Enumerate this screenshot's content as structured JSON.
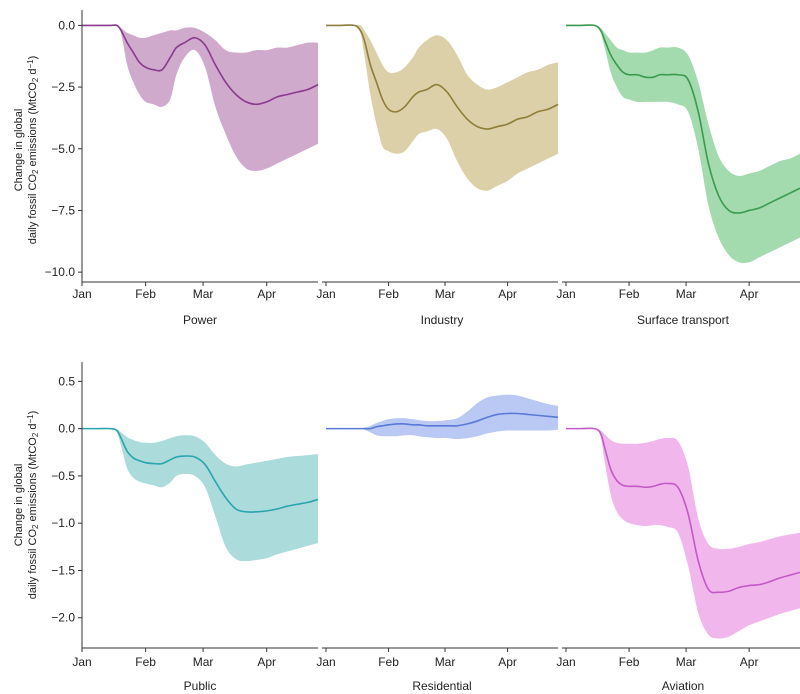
{
  "shared": {
    "ylabel_line1": "Change in global",
    "ylabel_line2_pre": "daily fossil CO",
    "ylabel_line2_sub": "2",
    "ylabel_line2_mid": " emissions (MtCO",
    "ylabel_line2_sub2": "2",
    "ylabel_line2_post": " d",
    "ylabel_line2_sup": "−1",
    "ylabel_line2_end": ")",
    "x_ticks": [
      "Jan",
      "Feb",
      "Mar",
      "Apr"
    ]
  },
  "chart_data": [
    {
      "type": "area",
      "title": "Power",
      "color": "#8a3a8e",
      "fill": "#c79bc4",
      "ylim": [
        -10.4,
        0.3
      ],
      "yticks": [
        0.0,
        -2.5,
        -5.0,
        -7.5,
        -10.0
      ],
      "ytick_labels": [
        "0.0",
        "−2.5",
        "−5.0",
        "−7.5",
        "−10.0"
      ],
      "x": [
        0,
        7,
        14,
        17,
        19,
        22,
        25,
        28,
        31,
        35,
        39,
        43,
        46,
        50,
        55,
        60,
        65,
        70,
        75,
        80,
        85,
        90,
        95,
        100,
        105,
        110,
        115
      ],
      "values": [
        0.0,
        0.0,
        0.0,
        0.0,
        -0.2,
        -0.7,
        -1.1,
        -1.5,
        -1.7,
        -1.8,
        -1.8,
        -1.3,
        -0.9,
        -0.7,
        -0.5,
        -0.8,
        -1.6,
        -2.3,
        -2.8,
        -3.1,
        -3.2,
        -3.1,
        -2.9,
        -2.8,
        -2.7,
        -2.6,
        -2.4
      ],
      "upper": [
        0.0,
        0.0,
        0.0,
        0.0,
        -0.1,
        -0.3,
        -0.4,
        -0.5,
        -0.5,
        -0.4,
        -0.3,
        -0.2,
        -0.2,
        -0.1,
        -0.1,
        -0.3,
        -0.6,
        -1.0,
        -1.1,
        -1.1,
        -1.0,
        -1.0,
        -0.9,
        -0.9,
        -0.8,
        -0.7,
        -0.7
      ],
      "lower": [
        0.0,
        0.0,
        0.0,
        0.0,
        -0.3,
        -1.6,
        -2.3,
        -2.8,
        -3.1,
        -3.2,
        -3.3,
        -3.0,
        -2.0,
        -1.3,
        -1.0,
        -1.7,
        -3.3,
        -4.4,
        -5.3,
        -5.8,
        -5.9,
        -5.8,
        -5.6,
        -5.4,
        -5.2,
        -5.0,
        -4.8
      ]
    },
    {
      "type": "area",
      "title": "Industry",
      "color": "#8f7d3a",
      "fill": "#d5c898",
      "ylim": [
        -10.4,
        0.3
      ],
      "x": [
        0,
        7,
        14,
        17,
        19,
        22,
        25,
        28,
        31,
        35,
        39,
        43,
        46,
        50,
        55,
        60,
        65,
        70,
        75,
        80,
        85,
        90,
        95,
        100,
        105,
        110,
        115
      ],
      "values": [
        0.0,
        0.0,
        0.0,
        -0.2,
        -0.6,
        -1.6,
        -2.3,
        -3.0,
        -3.4,
        -3.5,
        -3.3,
        -2.9,
        -2.7,
        -2.6,
        -2.4,
        -2.7,
        -3.3,
        -3.8,
        -4.1,
        -4.2,
        -4.1,
        -4.0,
        -3.8,
        -3.7,
        -3.5,
        -3.4,
        -3.2
      ],
      "upper": [
        0.0,
        0.0,
        0.0,
        0.0,
        -0.2,
        -0.6,
        -1.1,
        -1.6,
        -1.9,
        -1.9,
        -1.7,
        -1.3,
        -0.9,
        -0.6,
        -0.4,
        -0.6,
        -1.2,
        -2.0,
        -2.4,
        -2.6,
        -2.5,
        -2.3,
        -2.1,
        -1.9,
        -1.8,
        -1.6,
        -1.5
      ],
      "lower": [
        0.0,
        0.0,
        0.0,
        -0.3,
        -1.2,
        -2.8,
        -4.0,
        -4.9,
        -5.1,
        -5.2,
        -5.1,
        -4.7,
        -4.4,
        -4.3,
        -4.2,
        -4.6,
        -5.5,
        -6.2,
        -6.6,
        -6.7,
        -6.5,
        -6.3,
        -6.0,
        -5.8,
        -5.6,
        -5.4,
        -5.2
      ]
    },
    {
      "type": "area",
      "title": "Surface transport",
      "color": "#3a9a4e",
      "fill": "#93d3a0",
      "ylim": [
        -10.4,
        0.3
      ],
      "x": [
        0,
        7,
        14,
        17,
        19,
        22,
        25,
        28,
        31,
        35,
        39,
        43,
        46,
        50,
        55,
        60,
        65,
        70,
        75,
        80,
        85,
        90,
        95,
        100,
        105,
        110,
        115
      ],
      "values": [
        0.0,
        0.0,
        0.0,
        -0.2,
        -0.6,
        -1.2,
        -1.6,
        -1.9,
        -2.0,
        -2.0,
        -2.1,
        -2.1,
        -2.0,
        -2.0,
        -2.0,
        -2.2,
        -3.5,
        -5.6,
        -6.9,
        -7.5,
        -7.6,
        -7.5,
        -7.4,
        -7.2,
        -7.0,
        -6.8,
        -6.6
      ],
      "upper": [
        0.0,
        0.0,
        0.0,
        -0.1,
        -0.3,
        -0.6,
        -0.9,
        -1.0,
        -1.1,
        -1.1,
        -1.1,
        -1.0,
        -0.9,
        -0.9,
        -0.9,
        -1.2,
        -2.3,
        -4.0,
        -5.3,
        -5.9,
        -6.1,
        -6.0,
        -5.9,
        -5.7,
        -5.5,
        -5.4,
        -5.2
      ],
      "lower": [
        0.0,
        0.0,
        0.0,
        -0.3,
        -0.9,
        -1.9,
        -2.5,
        -2.9,
        -3.0,
        -3.1,
        -3.1,
        -3.1,
        -3.1,
        -3.1,
        -3.2,
        -3.5,
        -5.0,
        -7.3,
        -8.6,
        -9.3,
        -9.6,
        -9.6,
        -9.4,
        -9.2,
        -9.0,
        -8.8,
        -8.6
      ]
    },
    {
      "type": "area",
      "title": "Public",
      "color": "#2aa4ad",
      "fill": "#9dd5d6",
      "ylim": [
        -2.32,
        0.62
      ],
      "yticks": [
        0.5,
        0.0,
        -0.5,
        -1.0,
        -1.5,
        -2.0
      ],
      "ytick_labels": [
        "0.5",
        "0.0",
        "−0.5",
        "−1.0",
        "−1.5",
        "−2.0"
      ],
      "x": [
        0,
        7,
        14,
        17,
        19,
        22,
        25,
        28,
        31,
        35,
        39,
        43,
        46,
        50,
        55,
        60,
        65,
        70,
        75,
        80,
        85,
        90,
        95,
        100,
        105,
        110,
        115
      ],
      "values": [
        0.0,
        0.0,
        0.0,
        -0.02,
        -0.1,
        -0.24,
        -0.31,
        -0.34,
        -0.36,
        -0.37,
        -0.37,
        -0.33,
        -0.3,
        -0.29,
        -0.3,
        -0.38,
        -0.56,
        -0.73,
        -0.85,
        -0.88,
        -0.88,
        -0.87,
        -0.85,
        -0.82,
        -0.8,
        -0.78,
        -0.75
      ],
      "upper": [
        0.0,
        0.0,
        0.0,
        -0.01,
        -0.04,
        -0.09,
        -0.12,
        -0.14,
        -0.15,
        -0.15,
        -0.13,
        -0.1,
        -0.08,
        -0.07,
        -0.08,
        -0.15,
        -0.28,
        -0.37,
        -0.4,
        -0.38,
        -0.36,
        -0.34,
        -0.32,
        -0.3,
        -0.29,
        -0.28,
        -0.27
      ],
      "lower": [
        0.0,
        0.0,
        0.0,
        -0.04,
        -0.18,
        -0.42,
        -0.52,
        -0.56,
        -0.58,
        -0.6,
        -0.62,
        -0.57,
        -0.5,
        -0.48,
        -0.5,
        -0.62,
        -0.93,
        -1.25,
        -1.38,
        -1.4,
        -1.39,
        -1.37,
        -1.33,
        -1.3,
        -1.27,
        -1.24,
        -1.21
      ]
    },
    {
      "type": "area",
      "title": "Residential",
      "color": "#5a78d6",
      "fill": "#aec0f2",
      "ylim": [
        -2.32,
        0.62
      ],
      "x": [
        0,
        7,
        14,
        17,
        19,
        22,
        25,
        28,
        31,
        35,
        39,
        43,
        46,
        50,
        55,
        60,
        65,
        70,
        75,
        80,
        85,
        90,
        95,
        100,
        105,
        110,
        115
      ],
      "values": [
        0.0,
        0.0,
        0.0,
        0.0,
        0.0,
        0.0,
        0.02,
        0.03,
        0.04,
        0.05,
        0.05,
        0.04,
        0.04,
        0.03,
        0.03,
        0.03,
        0.03,
        0.05,
        0.08,
        0.12,
        0.15,
        0.16,
        0.16,
        0.15,
        0.14,
        0.13,
        0.12
      ],
      "upper": [
        0.0,
        0.0,
        0.0,
        0.0,
        0.01,
        0.03,
        0.06,
        0.08,
        0.1,
        0.11,
        0.11,
        0.1,
        0.09,
        0.08,
        0.08,
        0.09,
        0.11,
        0.18,
        0.27,
        0.33,
        0.35,
        0.36,
        0.35,
        0.32,
        0.29,
        0.26,
        0.24
      ],
      "lower": [
        0.0,
        0.0,
        0.0,
        0.0,
        -0.01,
        -0.04,
        -0.07,
        -0.08,
        -0.08,
        -0.08,
        -0.07,
        -0.07,
        -0.08,
        -0.09,
        -0.1,
        -0.1,
        -0.11,
        -0.1,
        -0.08,
        -0.05,
        -0.03,
        -0.02,
        -0.02,
        -0.02,
        -0.02,
        -0.02,
        -0.01
      ]
    },
    {
      "type": "area",
      "title": "Aviation",
      "color": "#c25ac6",
      "fill": "#eeaaea",
      "ylim": [
        -2.32,
        0.62
      ],
      "x": [
        0,
        7,
        14,
        17,
        19,
        22,
        25,
        28,
        31,
        35,
        39,
        43,
        46,
        50,
        55,
        60,
        65,
        70,
        75,
        80,
        85,
        90,
        95,
        100,
        105,
        110,
        115
      ],
      "values": [
        0.0,
        0.0,
        0.0,
        -0.05,
        -0.2,
        -0.43,
        -0.55,
        -0.6,
        -0.61,
        -0.61,
        -0.62,
        -0.61,
        -0.59,
        -0.58,
        -0.62,
        -0.9,
        -1.4,
        -1.7,
        -1.73,
        -1.72,
        -1.68,
        -1.66,
        -1.65,
        -1.62,
        -1.58,
        -1.55,
        -1.52
      ],
      "upper": [
        0.0,
        0.0,
        0.0,
        -0.02,
        -0.06,
        -0.12,
        -0.15,
        -0.16,
        -0.16,
        -0.16,
        -0.15,
        -0.13,
        -0.11,
        -0.1,
        -0.13,
        -0.4,
        -0.95,
        -1.22,
        -1.27,
        -1.27,
        -1.25,
        -1.22,
        -1.2,
        -1.17,
        -1.14,
        -1.12,
        -1.1
      ],
      "lower": [
        0.0,
        0.0,
        0.0,
        -0.08,
        -0.35,
        -0.7,
        -0.88,
        -0.96,
        -1.0,
        -1.02,
        -1.03,
        -1.02,
        -1.02,
        -1.04,
        -1.1,
        -1.45,
        -1.95,
        -2.18,
        -2.22,
        -2.2,
        -2.14,
        -2.08,
        -2.04,
        -2.0,
        -1.96,
        -1.93,
        -1.9
      ]
    }
  ]
}
